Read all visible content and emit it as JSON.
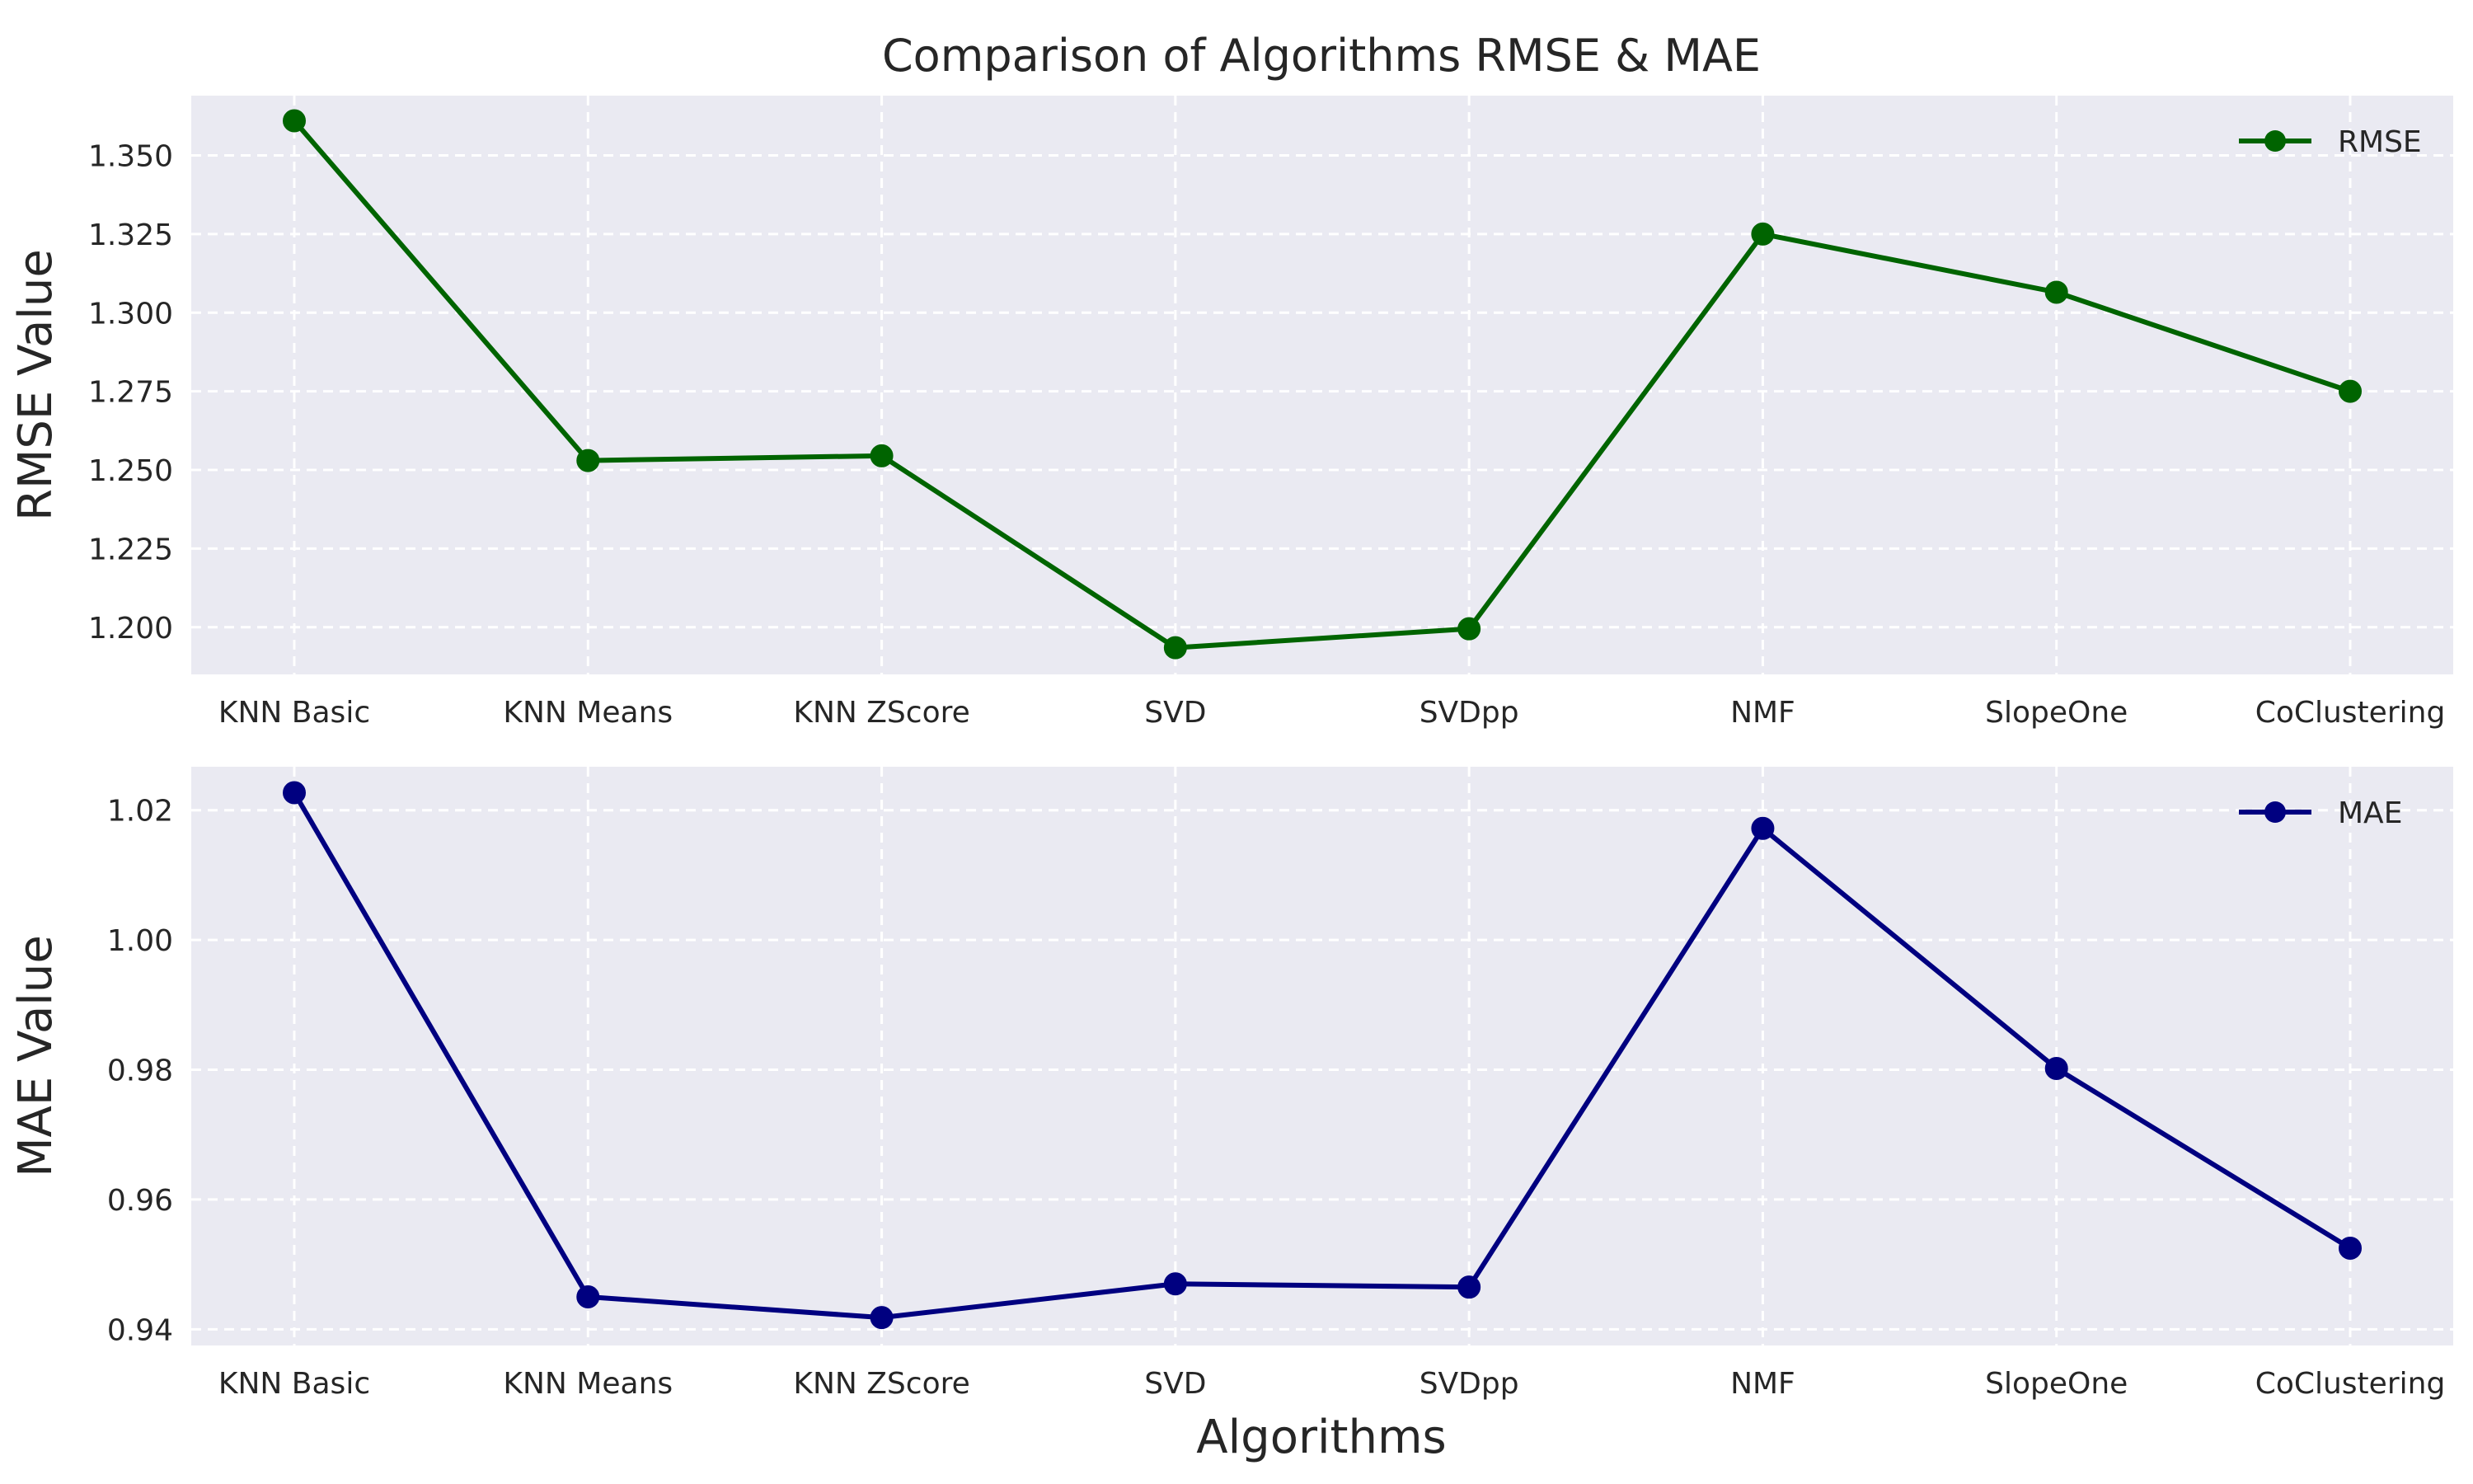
{
  "chart_data": [
    {
      "type": "line",
      "title": "Comparison of Algorithms RMSE & MAE",
      "xlabel": "",
      "ylabel": "RMSE Value",
      "categories": [
        "KNN Basic",
        "KNN Means",
        "KNN ZScore",
        "SVD",
        "SVDpp",
        "NMF",
        "SlopeOne",
        "CoClustering"
      ],
      "series": [
        {
          "name": "RMSE",
          "color": "#006400",
          "marker": "circle",
          "values": [
            1.361,
            1.253,
            1.2545,
            1.1935,
            1.1995,
            1.325,
            1.3065,
            1.275
          ]
        }
      ],
      "ylim": [
        1.185,
        1.369
      ],
      "yticks": [
        1.2,
        1.225,
        1.25,
        1.275,
        1.3,
        1.325,
        1.35
      ],
      "ytick_labels": [
        "1.200",
        "1.225",
        "1.250",
        "1.275",
        "1.300",
        "1.325",
        "1.350"
      ],
      "grid": true,
      "legend_position": "top-right",
      "background": "#eaeaf2"
    },
    {
      "type": "line",
      "title": "",
      "xlabel": "Algorithms",
      "ylabel": "MAE Value",
      "categories": [
        "KNN Basic",
        "KNN Means",
        "KNN ZScore",
        "SVD",
        "SVDpp",
        "NMF",
        "SlopeOne",
        "CoClustering"
      ],
      "series": [
        {
          "name": "MAE",
          "color": "#000080",
          "marker": "circle",
          "values": [
            1.0227,
            0.945,
            0.9418,
            0.947,
            0.9465,
            1.0172,
            0.9802,
            0.9525
          ]
        }
      ],
      "ylim": [
        0.9375,
        1.0267
      ],
      "yticks": [
        0.94,
        0.96,
        0.98,
        1.0,
        1.02
      ],
      "ytick_labels": [
        "0.94",
        "0.96",
        "0.98",
        "1.00",
        "1.02"
      ],
      "grid": true,
      "legend_position": "top-right",
      "background": "#eaeaf2"
    }
  ]
}
